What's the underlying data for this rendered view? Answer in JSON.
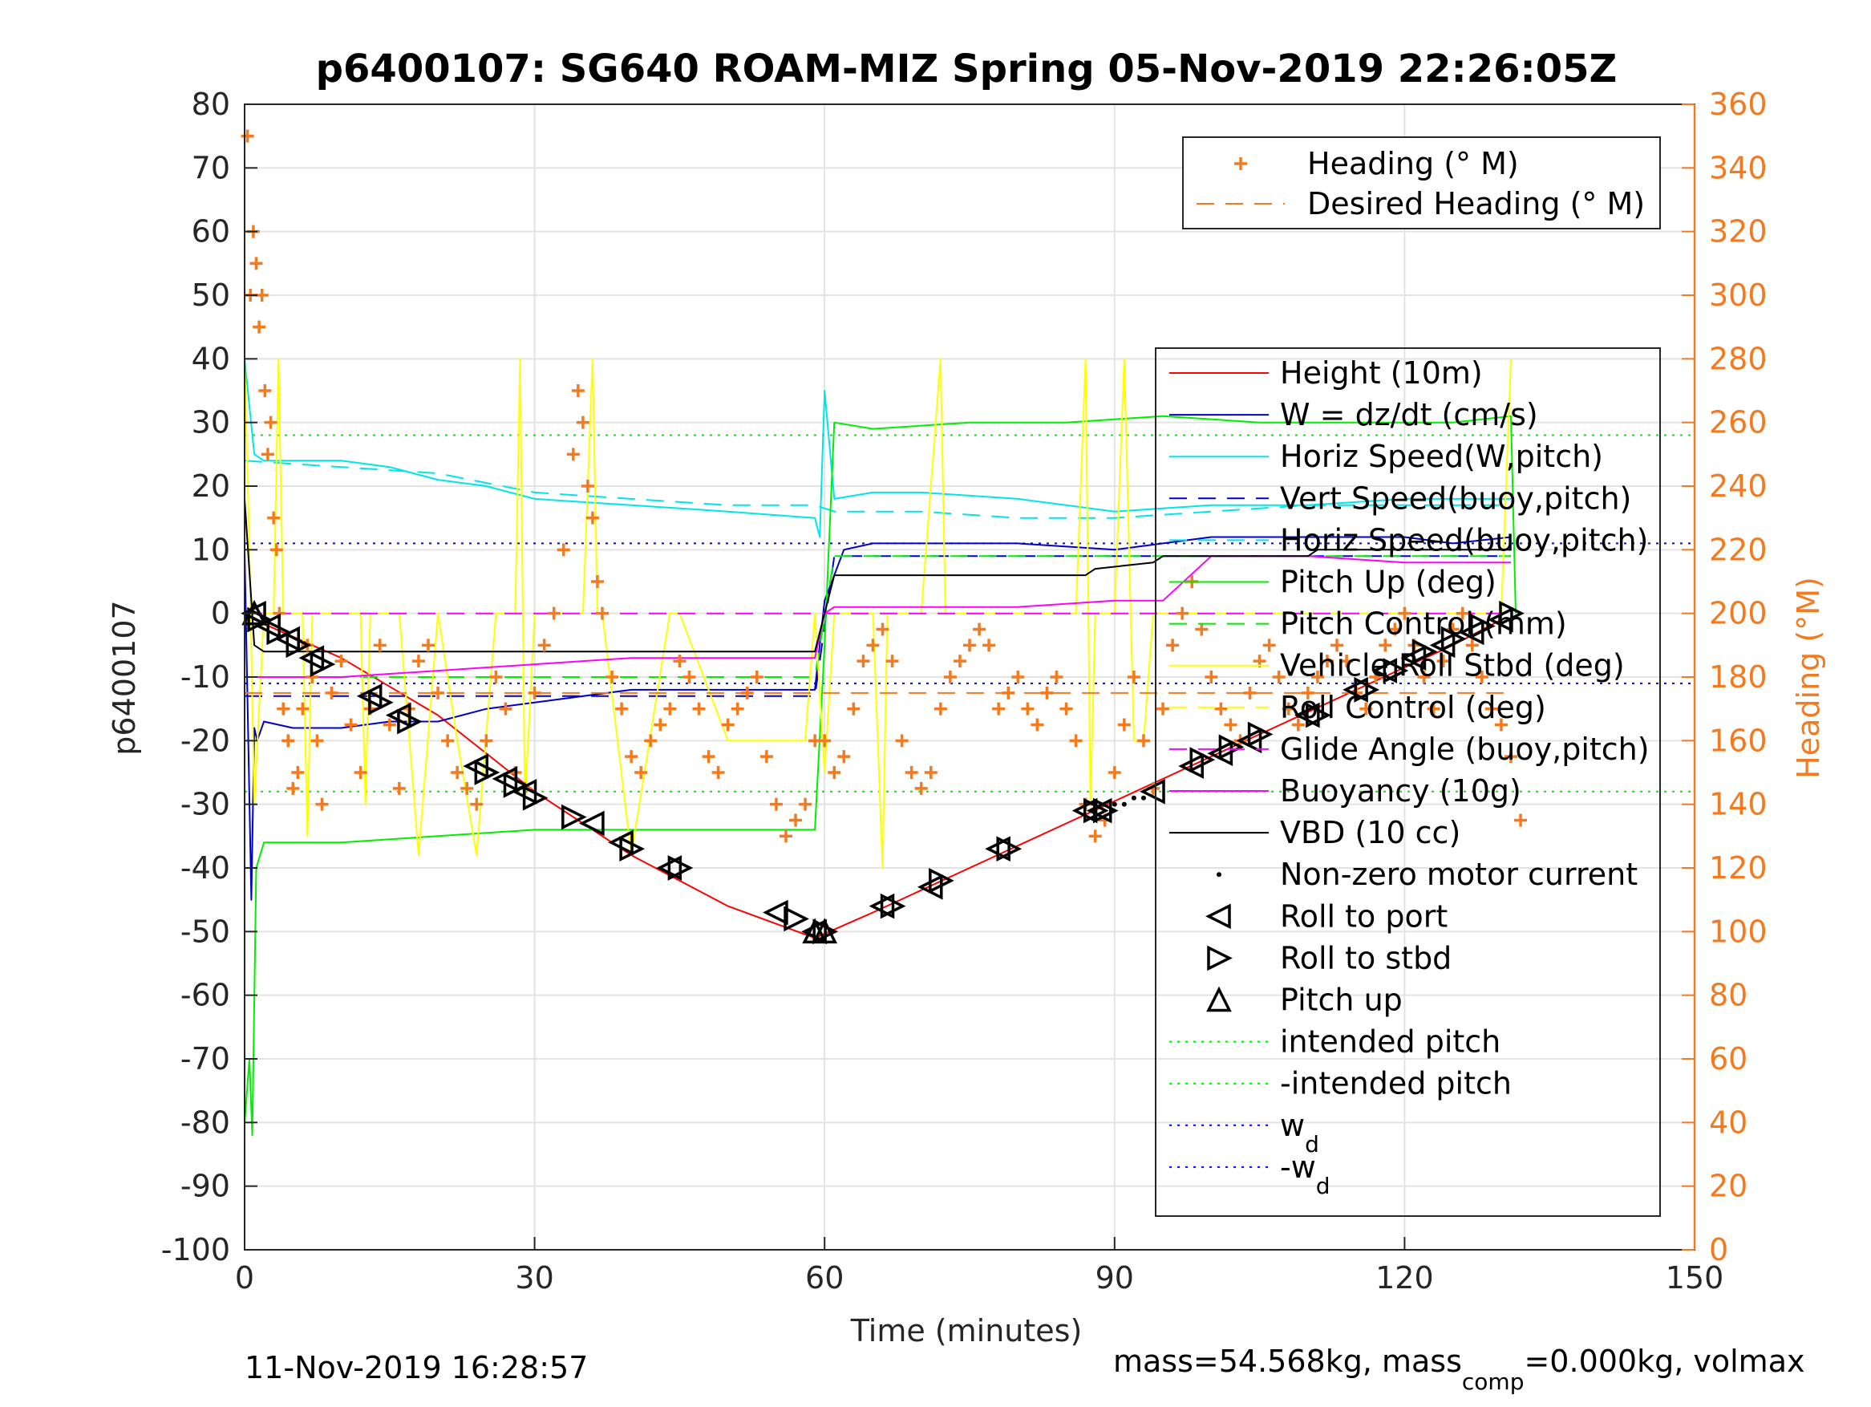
{
  "chart_data": {
    "type": "line",
    "title": "p6400107: SG640 ROAM-MIZ Spring 05-Nov-2019 22:26:05Z",
    "xlabel": "Time (minutes)",
    "ylabel_left": "p6400107",
    "ylabel_right": "Heading (°M)",
    "xlim": [
      0,
      150
    ],
    "ylim_left": [
      -100,
      80
    ],
    "ylim_right": [
      0,
      360
    ],
    "x_ticks": [
      0,
      30,
      60,
      90,
      120,
      150
    ],
    "y_ticks_left": [
      80,
      70,
      60,
      50,
      40,
      30,
      20,
      10,
      0,
      -10,
      -20,
      -30,
      -40,
      -50,
      -60,
      -70,
      -80,
      -90,
      -100
    ],
    "y_ticks_right": [
      360,
      340,
      320,
      300,
      280,
      260,
      240,
      220,
      200,
      180,
      160,
      140,
      120,
      100,
      80,
      60,
      40,
      20,
      0
    ],
    "grid": true,
    "footer_left": "11-Nov-2019 16:28:57",
    "footer_right_parts": [
      "mass=54.568kg, mass",
      "comp",
      "=0.000kg, volmax"
    ],
    "legend_heading": [
      {
        "label": "Heading (° M)",
        "color": "#f47a20",
        "style": "plus"
      },
      {
        "label": "Desired Heading (° M)",
        "color": "#f47a20",
        "style": "dashed"
      }
    ],
    "legend_main": [
      {
        "label": "Height (10m)",
        "color": "#ff0000",
        "style": "line"
      },
      {
        "label": "W = dz/dt (cm/s)",
        "color": "#0000cd",
        "style": "line"
      },
      {
        "label": "Horiz Speed(W,pitch)",
        "color": "#00e5e5",
        "style": "line"
      },
      {
        "label": "Vert Speed(buoy,pitch)",
        "color": "#0000cd",
        "style": "dashed"
      },
      {
        "label": "Horiz Speed(buoy,pitch)",
        "color": "#00e5e5",
        "style": "dashed"
      },
      {
        "label": "Pitch Up (deg)",
        "color": "#00ee00",
        "style": "line"
      },
      {
        "label": "Pitch Control (mm)",
        "color": "#00ee00",
        "style": "dashed"
      },
      {
        "label": "Vehicle Roll Stbd (deg)",
        "color": "#ffff00",
        "style": "line"
      },
      {
        "label": "Roll Control (deg)",
        "color": "#ffff00",
        "style": "dashed"
      },
      {
        "label": "Glide Angle (buoy,pitch)",
        "color": "#ff00ff",
        "style": "dashed"
      },
      {
        "label": "Buoyancy (10g)",
        "color": "#ff00ff",
        "style": "line"
      },
      {
        "label": "VBD (10 cc)",
        "color": "#000000",
        "style": "line"
      },
      {
        "label": "Non-zero motor current",
        "color": "#000000",
        "style": "dot"
      },
      {
        "label": "Roll to port",
        "color": "#000000",
        "style": "tri-left"
      },
      {
        "label": "Roll to stbd",
        "color": "#000000",
        "style": "tri-right"
      },
      {
        "label": "Pitch up",
        "color": "#000000",
        "style": "tri-up"
      },
      {
        "label": "intended pitch",
        "color": "#00ee00",
        "style": "dotted"
      },
      {
        "label": "-intended pitch",
        "color": "#00ee00",
        "style": "dotted"
      },
      {
        "label": "w",
        "sub": "d",
        "color": "#0000ff",
        "style": "dotted"
      },
      {
        "label": "-w",
        "sub": "d",
        "color": "#0000ff",
        "style": "dotted"
      }
    ],
    "reference_lines": [
      {
        "name": "intended pitch",
        "y": 28,
        "color": "#00ee00"
      },
      {
        "name": "-intended pitch",
        "y": -28,
        "color": "#00ee00"
      },
      {
        "name": "w_d",
        "y": 11,
        "color": "#0000ff"
      },
      {
        "name": "-w_d",
        "y": -11,
        "color": "#0000ff"
      }
    ],
    "series": [
      {
        "name": "Height (10m)",
        "color": "#ff0000",
        "style": "line",
        "x": [
          0,
          1,
          10,
          20,
          30,
          40,
          50,
          59,
          65,
          75,
          85,
          95,
          105,
          115,
          125,
          130
        ],
        "y": [
          0,
          -1,
          -7,
          -16,
          -28,
          -38,
          -46,
          -51,
          -47,
          -40,
          -33,
          -26,
          -19,
          -12,
          -5,
          -1
        ]
      },
      {
        "name": "W = dz/dt (cm/s)",
        "color": "#0000cd",
        "style": "line",
        "x": [
          0,
          0.7,
          1,
          1.3,
          2,
          5,
          10,
          15,
          20,
          25,
          30,
          40,
          50,
          55,
          59,
          60,
          62,
          65,
          70,
          80,
          90,
          95,
          100,
          110,
          120,
          125,
          131
        ],
        "y": [
          10,
          -45,
          -18,
          -20,
          -17,
          -18,
          -18,
          -17,
          -17,
          -15,
          -14,
          -12,
          -12,
          -12,
          -12,
          2,
          10,
          11,
          11,
          11,
          10,
          11,
          12,
          12,
          12,
          11,
          12
        ]
      },
      {
        "name": "Horiz Speed(W,pitch)",
        "color": "#00e5e5",
        "style": "line",
        "x": [
          0,
          1,
          2,
          5,
          10,
          15,
          20,
          25,
          30,
          40,
          50,
          59,
          59.5,
          60,
          61,
          65,
          70,
          80,
          90,
          100,
          110,
          120,
          131
        ],
        "y": [
          40,
          25,
          24,
          24,
          24,
          23,
          21,
          20,
          18,
          17,
          16,
          15,
          12,
          35,
          18,
          19,
          19,
          18,
          16,
          17,
          17,
          18,
          18
        ]
      },
      {
        "name": "Vert Speed(buoy,pitch)",
        "color": "#0000cd",
        "style": "dashed",
        "x": [
          0,
          59,
          61,
          131
        ],
        "y": [
          -13,
          -13,
          9,
          9
        ]
      },
      {
        "name": "Horiz Speed(buoy,pitch)",
        "color": "#00e5e5",
        "style": "dashed",
        "x": [
          0,
          10,
          20,
          30,
          40,
          50,
          59,
          61,
          70,
          80,
          90,
          100,
          110,
          120,
          131
        ],
        "y": [
          24,
          23,
          22,
          19,
          18,
          17,
          17,
          16,
          16,
          15,
          15,
          16,
          17,
          17,
          17
        ]
      },
      {
        "name": "Pitch Up (deg)",
        "color": "#00ee00",
        "style": "line",
        "x": [
          0,
          0.5,
          0.8,
          1.2,
          2,
          5,
          10,
          20,
          30,
          40,
          50,
          59,
          60,
          61,
          65,
          75,
          85,
          95,
          105,
          115,
          125,
          131,
          131.5
        ],
        "y": [
          -80,
          -70,
          -82,
          -40,
          -36,
          -36,
          -36,
          -35,
          -34,
          -34,
          -34,
          -34,
          -5,
          30,
          29,
          30,
          30,
          31,
          30,
          30,
          30,
          31,
          0
        ]
      },
      {
        "name": "Pitch Control (mm)",
        "color": "#00ee00",
        "style": "dashed",
        "x": [
          0,
          59,
          61,
          131
        ],
        "y": [
          -10,
          -10,
          9,
          9
        ]
      },
      {
        "name": "Vehicle Roll Stbd (deg)",
        "color": "#ffff00",
        "style": "line",
        "x": [
          0,
          0.5,
          1,
          2,
          3,
          3.5,
          4,
          6,
          6.5,
          7,
          9,
          12,
          12.5,
          13,
          16,
          18,
          20,
          22,
          24,
          26,
          28,
          28.5,
          29,
          30,
          35,
          36,
          36.5,
          37,
          40,
          44,
          45,
          50,
          55,
          58,
          59,
          60,
          61,
          65,
          66,
          66.5,
          67,
          70,
          72,
          72.5,
          73,
          80,
          86,
          87,
          87.5,
          88,
          90,
          91,
          92,
          93,
          94,
          98,
          102,
          106,
          110,
          114,
          118,
          122,
          126,
          130,
          131
        ],
        "y": [
          40,
          10,
          -30,
          0,
          0,
          40,
          0,
          0,
          -35,
          0,
          0,
          0,
          -30,
          0,
          0,
          -38,
          0,
          -20,
          -38,
          0,
          0,
          40,
          -30,
          0,
          0,
          40,
          0,
          0,
          -38,
          0,
          0,
          -20,
          -20,
          -20,
          0,
          -25,
          0,
          0,
          -40,
          0,
          0,
          0,
          40,
          0,
          0,
          0,
          0,
          40,
          -30,
          0,
          0,
          40,
          -20,
          -20,
          0,
          0,
          0,
          0,
          0,
          0,
          0,
          0,
          0,
          0,
          40
        ]
      },
      {
        "name": "Roll Control (deg)",
        "color": "#ffff00",
        "style": "dashed",
        "x": [
          0,
          131
        ],
        "y": [
          0,
          0
        ]
      },
      {
        "name": "Glide Angle (buoy,pitch)",
        "color": "#ff00ff",
        "style": "dashed",
        "x": [
          0,
          59,
          61,
          131
        ],
        "y": [
          0,
          0,
          0,
          0
        ]
      },
      {
        "name": "Buoyancy (10g)",
        "color": "#ff00ff",
        "style": "line",
        "x": [
          0,
          1,
          10,
          20,
          30,
          40,
          50,
          59,
          60,
          61,
          70,
          80,
          90,
          95,
          100,
          110,
          120,
          131
        ],
        "y": [
          -10,
          -10,
          -10,
          -9,
          -8,
          -7,
          -7,
          -7,
          0,
          1,
          1,
          1,
          2,
          2,
          9,
          9,
          8,
          8
        ]
      },
      {
        "name": "VBD (10 cc)",
        "color": "#000000",
        "style": "line",
        "x": [
          0,
          1,
          2,
          59,
          61,
          87,
          88,
          94,
          95,
          110,
          111,
          131
        ],
        "y": [
          18,
          -5,
          -6,
          -6,
          6,
          6,
          7,
          8,
          9,
          9,
          10,
          10
        ]
      }
    ],
    "heading": {
      "name": "Heading (° M)",
      "axis": "right",
      "color": "#f47a20",
      "style": "plus",
      "x": [
        0.3,
        0.6,
        0.9,
        1.2,
        1.5,
        1.8,
        2.1,
        2.4,
        2.7,
        3.0,
        3.3,
        3.6,
        4.0,
        4.5,
        5,
        5.5,
        6,
        6.5,
        7,
        7.5,
        8,
        9,
        10,
        11,
        12,
        13,
        14,
        15,
        16,
        17,
        18,
        19,
        20,
        21,
        22,
        23,
        24,
        25,
        26,
        27,
        28,
        29,
        30,
        31,
        32,
        33,
        34,
        34.5,
        35,
        35.5,
        36,
        36.5,
        37,
        38,
        39,
        40,
        41,
        42,
        43,
        44,
        45,
        46,
        47,
        48,
        49,
        50,
        51,
        52,
        53,
        54,
        55,
        56,
        57,
        58,
        59,
        60,
        61,
        62,
        63,
        64,
        65,
        66,
        67,
        68,
        69,
        70,
        71,
        72,
        73,
        74,
        75,
        76,
        77,
        78,
        79,
        80,
        81,
        82,
        83,
        84,
        85,
        86,
        87,
        88,
        89,
        90,
        91,
        92,
        93,
        94,
        95,
        96,
        97,
        98,
        99,
        100,
        101,
        102,
        103,
        104,
        105,
        106,
        107,
        108,
        109,
        110,
        111,
        112,
        113,
        114,
        115,
        116,
        117,
        118,
        119,
        120,
        121,
        122,
        123,
        124,
        125,
        126,
        127,
        128,
        129,
        130,
        131,
        132
      ],
      "y": [
        350,
        300,
        320,
        310,
        290,
        300,
        270,
        250,
        260,
        230,
        220,
        200,
        170,
        160,
        145,
        150,
        170,
        190,
        180,
        160,
        140,
        175,
        185,
        165,
        150,
        170,
        190,
        165,
        145,
        170,
        185,
        190,
        175,
        160,
        150,
        145,
        140,
        160,
        180,
        170,
        150,
        145,
        175,
        190,
        200,
        220,
        250,
        270,
        260,
        240,
        230,
        210,
        200,
        180,
        170,
        155,
        150,
        160,
        165,
        170,
        185,
        180,
        170,
        155,
        150,
        165,
        170,
        175,
        180,
        155,
        140,
        130,
        135,
        140,
        160,
        160,
        150,
        155,
        170,
        185,
        190,
        195,
        185,
        160,
        150,
        145,
        150,
        170,
        180,
        185,
        190,
        195,
        190,
        170,
        175,
        180,
        170,
        165,
        175,
        180,
        170,
        160,
        140,
        130,
        135,
        150,
        165,
        180,
        160,
        145,
        170,
        190,
        200,
        210,
        195,
        180,
        170,
        165,
        160,
        175,
        185,
        190,
        180,
        170,
        165,
        175,
        180,
        185,
        190,
        185,
        175,
        170,
        180,
        190,
        195,
        200,
        190,
        180,
        170,
        185,
        195,
        200,
        190,
        180,
        170,
        165,
        155,
        135
      ]
    },
    "desired_heading": {
      "name": "Desired Heading (° M)",
      "axis": "right",
      "color": "#f47a20",
      "style": "dashed",
      "x": [
        0,
        131
      ],
      "y": [
        175,
        175
      ]
    },
    "markers": {
      "roll_to_port": {
        "x": [
          1,
          2.5,
          4.5,
          7,
          13,
          16,
          24,
          27,
          29,
          36,
          39,
          44,
          55,
          59,
          66,
          71,
          78,
          87,
          88.5,
          94,
          98,
          101,
          104,
          110,
          115,
          118,
          121,
          124,
          127,
          130
        ],
        "y": [
          0,
          -2,
          -4,
          -7,
          -13,
          -16,
          -24,
          -26,
          -28,
          -33,
          -36,
          -40,
          -47,
          -50,
          -46,
          -43,
          -37,
          -31,
          -31,
          -28,
          -24,
          -22,
          -20,
          -16,
          -12,
          -9,
          -7,
          -5,
          -3,
          -1
        ]
      },
      "roll_to_stbd": {
        "x": [
          1.5,
          3.5,
          5.5,
          8,
          14,
          17,
          25,
          28,
          30,
          34,
          40,
          45,
          57,
          60,
          67,
          72,
          79,
          88,
          89,
          99,
          102,
          105,
          111,
          116,
          119,
          122,
          125,
          128,
          131
        ],
        "y": [
          -1,
          -3,
          -5,
          -8,
          -14,
          -17,
          -25,
          -27,
          -29,
          -32,
          -37,
          -40,
          -48,
          -50,
          -46,
          -42,
          -37,
          -31,
          -31,
          -23,
          -21,
          -19,
          -16,
          -12,
          -9,
          -6,
          -4,
          -2,
          0
        ]
      },
      "pitch_up": {
        "x": [
          1,
          59,
          60
        ],
        "y": [
          0,
          -50,
          -50
        ]
      },
      "motor_current": {
        "x": [
          90,
          91,
          92,
          93
        ],
        "y": [
          -30,
          -30,
          -29,
          -29
        ]
      }
    }
  }
}
